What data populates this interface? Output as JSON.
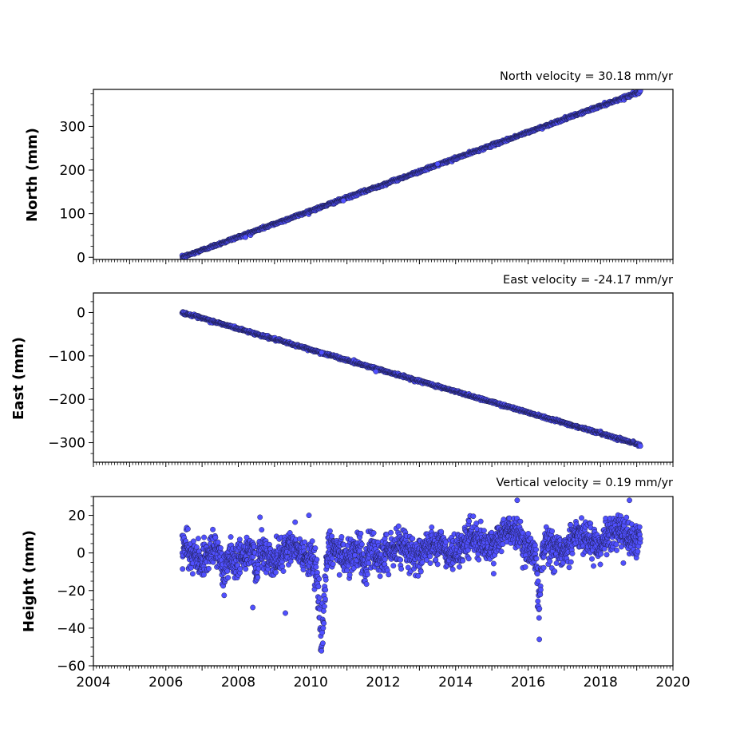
{
  "chart_data": [
    {
      "type": "scatter",
      "title": "North velocity = 30.18 mm/yr",
      "ylabel": "North (mm)",
      "xlim": [
        2004,
        2020
      ],
      "ylim": [
        -5,
        385
      ],
      "yticks": [
        0,
        100,
        200,
        300
      ],
      "ytick_labels": [
        "0",
        "100",
        "200",
        "300"
      ],
      "x_tick_labels_visible": false,
      "marker_color": "#5050ff",
      "trend": {
        "start": [
          2006.45,
          0
        ],
        "end": [
          2019.1,
          380
        ]
      },
      "noise_mm": 1.5,
      "outliers": [
        [
          2010.9,
          130
        ],
        [
          2008.2,
          46
        ],
        [
          2013.5,
          214
        ]
      ]
    },
    {
      "type": "scatter",
      "title": "East velocity = -24.17 mm/yr",
      "ylabel": "East (mm)",
      "xlim": [
        2004,
        2020
      ],
      "ylim": [
        -345,
        45
      ],
      "yticks": [
        0,
        -100,
        -200,
        -300
      ],
      "ytick_labels": [
        "0",
        "−100",
        "−200",
        "−300"
      ],
      "x_tick_labels_visible": false,
      "marker_color": "#5050ff",
      "trend": {
        "start": [
          2006.45,
          0
        ],
        "end": [
          2019.1,
          -305
        ]
      },
      "noise_mm": 1.5,
      "outliers": [
        [
          2010.3,
          -92
        ],
        [
          2011.8,
          -136
        ]
      ]
    },
    {
      "type": "scatter",
      "title": "Vertical velocity = 0.19 mm/yr",
      "ylabel": "Height (mm)",
      "xlim": [
        2004,
        2020
      ],
      "ylim": [
        -60,
        30
      ],
      "yticks": [
        20,
        0,
        -20,
        -40,
        -60
      ],
      "ytick_labels": [
        "20",
        "0",
        "−20",
        "−40",
        "−60"
      ],
      "x_tick_labels_visible": true,
      "xticks": [
        2004,
        2006,
        2008,
        2010,
        2012,
        2014,
        2016,
        2018,
        2020
      ],
      "xtick_labels": [
        "2004",
        "2006",
        "2008",
        "2010",
        "2012",
        "2014",
        "2016",
        "2018",
        "2020"
      ],
      "marker_color": "#5050ff",
      "time_range": [
        2006.45,
        2019.1
      ],
      "baseline": [
        [
          2006.45,
          -1
        ],
        [
          2010.0,
          0
        ],
        [
          2014.0,
          3
        ],
        [
          2015.8,
          10
        ],
        [
          2016.3,
          0
        ],
        [
          2017.0,
          6
        ],
        [
          2019.1,
          10
        ]
      ],
      "noise_mm": 4.5,
      "dips": [
        {
          "center": 2010.3,
          "depth": -55,
          "width": 0.12
        },
        {
          "center": 2016.3,
          "depth": -48,
          "width": 0.06
        },
        {
          "center": 2007.6,
          "depth": -15,
          "width": 0.1
        },
        {
          "center": 2008.5,
          "depth": -22,
          "width": 0.05
        },
        {
          "center": 2011.5,
          "depth": -18,
          "width": 0.08
        }
      ],
      "outliers": [
        [
          2008.4,
          -29
        ],
        [
          2009.3,
          -32
        ],
        [
          2008.6,
          19
        ],
        [
          2009.95,
          20
        ],
        [
          2015.7,
          28
        ],
        [
          2018.8,
          28
        ],
        [
          2015.05,
          -11
        ]
      ]
    }
  ]
}
